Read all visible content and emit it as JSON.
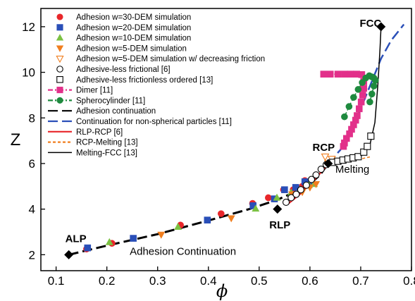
{
  "chart_data": {
    "type": "scatter",
    "xlabel": "ϕ",
    "ylabel": "Z",
    "xlim": [
      0.07,
      0.8
    ],
    "ylim": [
      1.3,
      12.8
    ],
    "xticks": [
      "0.1",
      "0.2",
      "0.3",
      "0.4",
      "0.5",
      "0.6",
      "0.7",
      "0.8"
    ],
    "yticks": [
      "2",
      "4",
      "6",
      "8",
      "10",
      "12"
    ],
    "xtick_values": [
      0.1,
      0.2,
      0.3,
      0.4,
      0.5,
      0.6,
      0.7,
      0.8
    ],
    "ytick_values": [
      2,
      4,
      6,
      8,
      10,
      12
    ],
    "legend_position": "top-left",
    "annotations": [
      {
        "text": "ALP",
        "x": 0.118,
        "y": 2.55,
        "bold": true
      },
      {
        "text": "RLP",
        "x": 0.52,
        "y": 3.15,
        "bold": true
      },
      {
        "text": "RCP",
        "x": 0.605,
        "y": 6.55,
        "bold": true
      },
      {
        "text": "FCC",
        "x": 0.698,
        "y": 12.0,
        "bold": true
      },
      {
        "text": "Melting",
        "x": 0.65,
        "y": 5.6,
        "bold": false
      },
      {
        "text": "Adhesion Continuation",
        "x": 0.245,
        "y": 2.0,
        "bold": false
      }
    ],
    "series": [
      {
        "name": "Adhesion w=30-DEM simulation",
        "marker": "circle",
        "color": "#e8262a",
        "filled": true,
        "points": [
          [
            0.16,
            2.25
          ],
          [
            0.21,
            2.5
          ],
          [
            0.345,
            3.3
          ],
          [
            0.425,
            3.8
          ],
          [
            0.487,
            4.25
          ],
          [
            0.518,
            4.5
          ],
          [
            0.548,
            4.85
          ],
          [
            0.567,
            4.85
          ],
          [
            0.585,
            5.0
          ],
          [
            0.59,
            5.25
          ]
        ]
      },
      {
        "name": "Adhesion w=20-DEM simulation",
        "marker": "square",
        "color": "#2a4fb8",
        "filled": true,
        "points": [
          [
            0.162,
            2.3
          ],
          [
            0.252,
            2.72
          ],
          [
            0.398,
            3.52
          ],
          [
            0.488,
            4.15
          ],
          [
            0.53,
            4.45
          ],
          [
            0.55,
            4.85
          ],
          [
            0.572,
            4.95
          ],
          [
            0.59,
            5.2
          ],
          [
            0.598,
            5.15
          ]
        ]
      },
      {
        "name": "Adhesion w=10-DEM simulation",
        "marker": "triangle-up",
        "color": "#7bc142",
        "filled": true,
        "points": [
          [
            0.205,
            2.55
          ],
          [
            0.34,
            3.22
          ],
          [
            0.493,
            4.02
          ],
          [
            0.535,
            4.5
          ],
          [
            0.563,
            4.72
          ],
          [
            0.58,
            4.85
          ],
          [
            0.598,
            5.05
          ],
          [
            0.608,
            5.1
          ]
        ]
      },
      {
        "name": "Adhesion w=5-DEM simulation",
        "marker": "triangle-down",
        "color": "#f07e1f",
        "filled": true,
        "points": [
          [
            0.307,
            2.88
          ],
          [
            0.445,
            3.6
          ],
          [
            0.565,
            4.65
          ],
          [
            0.585,
            4.75
          ],
          [
            0.6,
            4.95
          ],
          [
            0.612,
            5.1
          ]
        ]
      },
      {
        "name": "Adhesion w=5-DEM simulation w/ decreasing friction",
        "marker": "triangle-down",
        "color": "#f07e1f",
        "filled": false,
        "points": [
          [
            0.63,
            6.3
          ],
          [
            0.636,
            6.0
          ],
          [
            0.643,
            6.2
          ]
        ]
      },
      {
        "name": "Adhesive-less frictional [6]",
        "marker": "circle",
        "color": "#000000",
        "filled": false,
        "points": [
          [
            0.553,
            4.3
          ],
          [
            0.563,
            4.5
          ],
          [
            0.573,
            4.65
          ],
          [
            0.582,
            4.85
          ],
          [
            0.593,
            5.05
          ],
          [
            0.603,
            5.3
          ],
          [
            0.612,
            5.5
          ],
          [
            0.622,
            5.75
          ],
          [
            0.632,
            5.95
          ]
        ]
      },
      {
        "name": "Adhesive-less frictionless ordered [13]",
        "marker": "square",
        "color": "#000000",
        "filled": false,
        "points": [
          [
            0.645,
            6.05
          ],
          [
            0.655,
            6.1
          ],
          [
            0.665,
            6.15
          ],
          [
            0.675,
            6.2
          ],
          [
            0.685,
            6.25
          ],
          [
            0.695,
            6.3
          ],
          [
            0.706,
            6.5
          ],
          [
            0.713,
            6.75
          ],
          [
            0.72,
            7.2
          ]
        ]
      },
      {
        "name": "Dimer [11]",
        "marker": "square",
        "color": "#e2308a",
        "filled": true,
        "line": "dash-dot",
        "points": [
          [
            0.627,
            9.92
          ],
          [
            0.64,
            9.92
          ],
          [
            0.655,
            9.92
          ],
          [
            0.668,
            9.92
          ],
          [
            0.68,
            9.92
          ],
          [
            0.692,
            9.92
          ],
          [
            0.702,
            9.9
          ],
          [
            0.706,
            9.6
          ],
          [
            0.706,
            9.3
          ],
          [
            0.704,
            9.0
          ],
          [
            0.701,
            8.7
          ],
          [
            0.697,
            8.4
          ],
          [
            0.693,
            8.1
          ],
          [
            0.69,
            7.9
          ],
          [
            0.686,
            7.7
          ],
          [
            0.682,
            7.5
          ],
          [
            0.678,
            7.3
          ],
          [
            0.672,
            7.1
          ],
          [
            0.668,
            6.9
          ],
          [
            0.666,
            6.75
          ]
        ]
      },
      {
        "name": "Spherocylinder [11]",
        "marker": "circle",
        "color": "#1e8a3e",
        "filled": true,
        "line": "dash-dot",
        "points": [
          [
            0.668,
            8.05
          ],
          [
            0.677,
            8.5
          ],
          [
            0.686,
            8.9
          ],
          [
            0.695,
            9.25
          ],
          [
            0.703,
            9.55
          ],
          [
            0.71,
            9.75
          ],
          [
            0.717,
            9.85
          ],
          [
            0.722,
            9.8
          ],
          [
            0.726,
            9.75
          ],
          [
            0.729,
            9.65
          ],
          [
            0.726,
            9.4
          ],
          [
            0.722,
            9.05
          ],
          [
            0.718,
            8.7
          ]
        ]
      }
    ],
    "lines": [
      {
        "name": "Adhesion continuation",
        "color": "#000000",
        "style": "long-dash",
        "width": 3,
        "points": [
          [
            0.125,
            2.0
          ],
          [
            0.2,
            2.4
          ],
          [
            0.3,
            2.9
          ],
          [
            0.4,
            3.5
          ],
          [
            0.48,
            4.0
          ],
          [
            0.535,
            4.4
          ],
          [
            0.57,
            4.75
          ],
          [
            0.6,
            5.1
          ],
          [
            0.62,
            5.5
          ],
          [
            0.636,
            6.0
          ]
        ]
      },
      {
        "name": "Continuation for non-spherical particles  [11]",
        "color": "#2a4fb8",
        "style": "long-dash",
        "width": 2.5,
        "points": [
          [
            0.636,
            6.0
          ],
          [
            0.66,
            6.6
          ],
          [
            0.68,
            7.4
          ],
          [
            0.7,
            8.4
          ],
          [
            0.72,
            9.5
          ],
          [
            0.74,
            10.6
          ],
          [
            0.76,
            11.4
          ],
          [
            0.785,
            12.1
          ]
        ]
      },
      {
        "name": "RLP-RCP [6]",
        "color": "#e8262a",
        "style": "solid",
        "width": 2.5,
        "points": [
          [
            0.555,
            4.2
          ],
          [
            0.58,
            4.65
          ],
          [
            0.605,
            5.2
          ],
          [
            0.625,
            5.7
          ],
          [
            0.636,
            6.0
          ]
        ]
      },
      {
        "name": "RCP-Melting [13]",
        "color": "#f07e1f",
        "style": "short-dash",
        "width": 1.5,
        "points": [
          [
            0.636,
            6.0
          ],
          [
            0.68,
            6.1
          ],
          [
            0.72,
            6.3
          ]
        ]
      },
      {
        "name": "Melting-FCC [13]",
        "color": "#000000",
        "style": "solid",
        "width": 1.5,
        "points": [
          [
            0.636,
            6.0
          ],
          [
            0.67,
            6.1
          ],
          [
            0.7,
            6.3
          ],
          [
            0.718,
            6.8
          ],
          [
            0.728,
            7.8
          ],
          [
            0.734,
            9.5
          ],
          [
            0.738,
            11.0
          ],
          [
            0.74,
            12.0
          ]
        ]
      }
    ],
    "key_points": [
      {
        "label": "ALP",
        "x": 0.125,
        "y": 2.0
      },
      {
        "label": "RLP",
        "x": 0.536,
        "y": 4.0
      },
      {
        "label": "RCP",
        "x": 0.636,
        "y": 6.0
      },
      {
        "label": "FCC",
        "x": 0.74,
        "y": 12.0
      }
    ],
    "legend": [
      {
        "label": "Adhesion w=30-DEM simulation",
        "marker": "circle",
        "color": "#e8262a",
        "filled": true
      },
      {
        "label": "Adhesion w=20-DEM simulation",
        "marker": "square",
        "color": "#2a4fb8",
        "filled": true
      },
      {
        "label": "Adhesion w=10-DEM simulation",
        "marker": "triangle-up",
        "color": "#7bc142",
        "filled": true
      },
      {
        "label": "Adhesion w=5-DEM simulation",
        "marker": "triangle-down",
        "color": "#f07e1f",
        "filled": true
      },
      {
        "label": "Adhesion w=5-DEM simulation w/ decreasing friction",
        "marker": "triangle-down",
        "color": "#f07e1f",
        "filled": false
      },
      {
        "label": "Adhesive-less frictional [6]",
        "marker": "circle",
        "color": "#000000",
        "filled": false
      },
      {
        "label": "Adhesive-less frictionless ordered [13]",
        "marker": "square",
        "color": "#000000",
        "filled": false
      },
      {
        "label": "Dimer [11]",
        "marker": "square",
        "color": "#e2308a",
        "filled": true,
        "line": "dash-dot"
      },
      {
        "label": "Spherocylinder [11]",
        "marker": "circle",
        "color": "#1e8a3e",
        "filled": true,
        "line": "dash-dot"
      },
      {
        "label": "Adhesion continuation",
        "line": "long-dash",
        "color": "#000000"
      },
      {
        "label": "Continuation for non-spherical particles  [11]",
        "line": "long-dash",
        "color": "#2a4fb8"
      },
      {
        "label": "RLP-RCP [6]",
        "line": "solid",
        "color": "#e8262a"
      },
      {
        "label": "RCP-Melting [13]",
        "line": "short-dash",
        "color": "#f07e1f"
      },
      {
        "label": "Melting-FCC [13]",
        "line": "solid",
        "color": "#000000"
      }
    ]
  }
}
